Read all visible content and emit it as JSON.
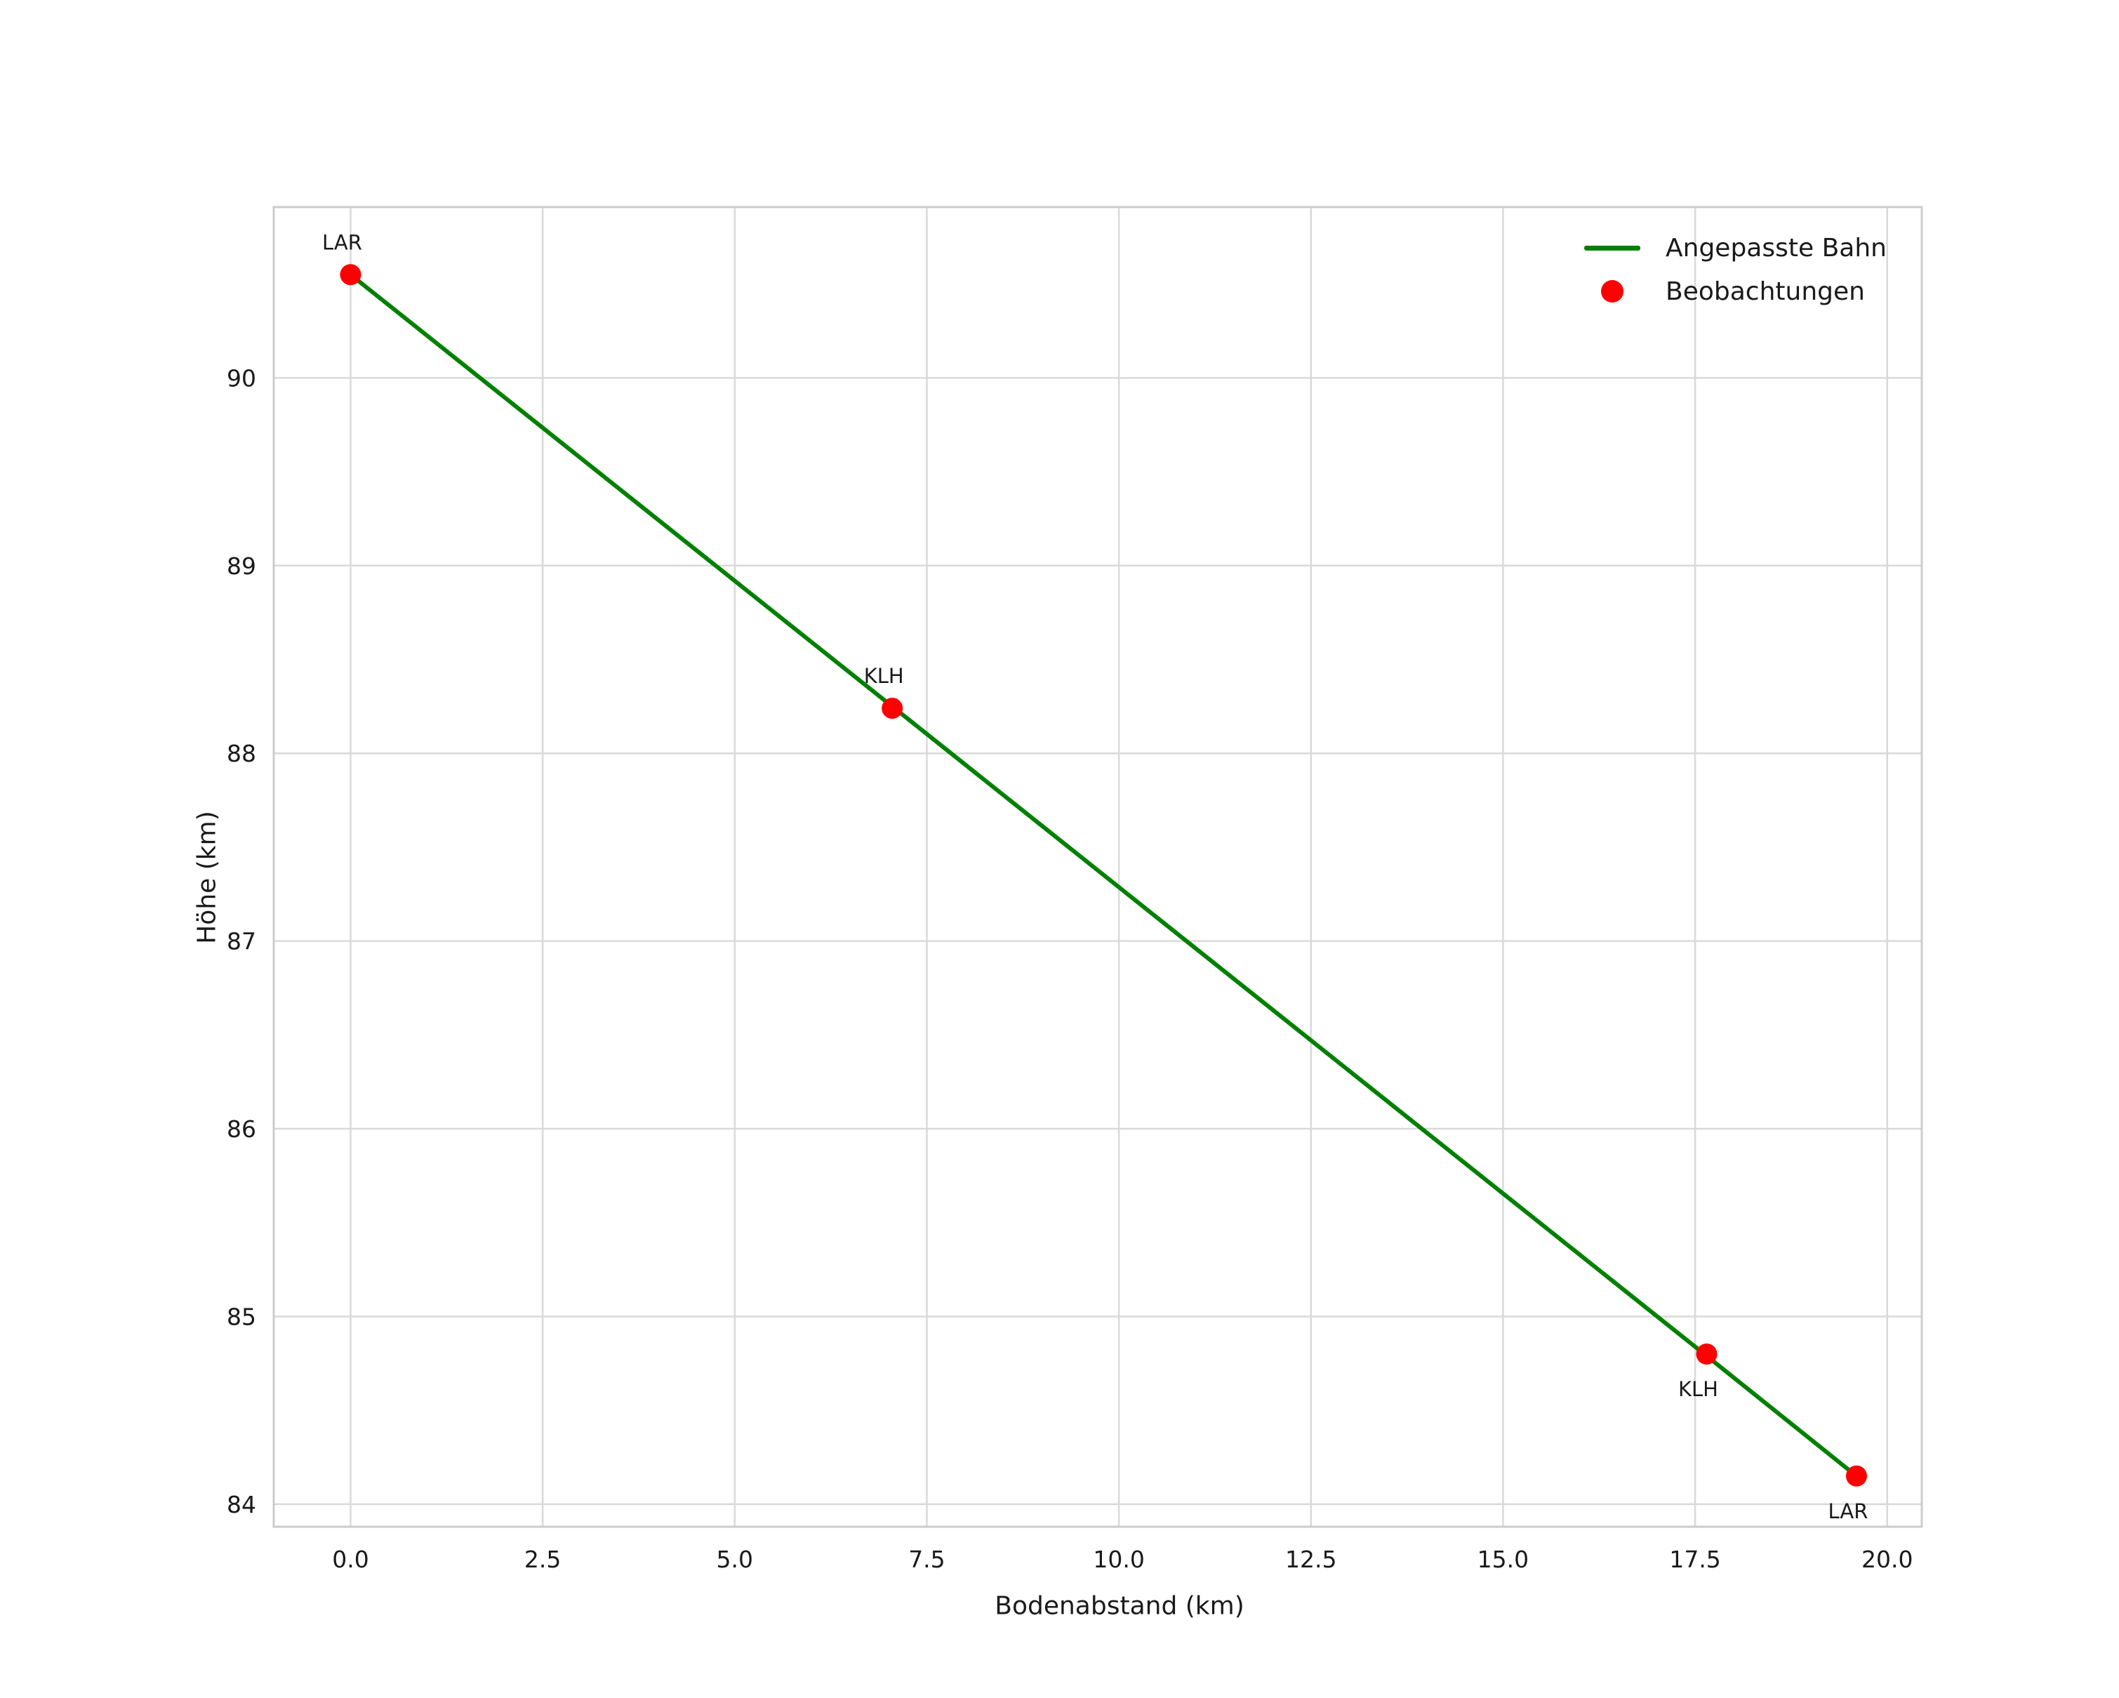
{
  "chart_data": {
    "type": "line+scatter",
    "title": "",
    "xlabel": "Bodenabstand (km)",
    "ylabel": "Höhe (km)",
    "xlim": [
      -1.0,
      20.45
    ],
    "ylim": [
      83.88,
      90.91
    ],
    "grid": true,
    "grid_color": "#d9d9d9",
    "border_color": "#cccccc",
    "background": "#ffffff",
    "x_tick_values": [
      0.0,
      2.5,
      5.0,
      7.5,
      10.0,
      12.5,
      15.0,
      17.5,
      20.0
    ],
    "x_tick_labels": [
      "0.0",
      "2.5",
      "5.0",
      "7.5",
      "10.0",
      "12.5",
      "15.0",
      "17.5",
      "20.0"
    ],
    "y_tick_values": [
      84,
      85,
      86,
      87,
      88,
      89,
      90
    ],
    "y_tick_labels": [
      "84",
      "85",
      "86",
      "87",
      "88",
      "89",
      "90"
    ],
    "line_series": {
      "name": "Angepasste Bahn",
      "color": "#008000",
      "x": [
        0.0,
        7.05,
        17.65,
        19.6
      ],
      "y": [
        90.55,
        88.25,
        84.79,
        84.15
      ]
    },
    "scatter_series": {
      "name": "Beobachtungen",
      "color": "#ff0000",
      "points": [
        {
          "x": 0.0,
          "y": 90.55,
          "label": "LAR",
          "label_pos": "above"
        },
        {
          "x": 7.05,
          "y": 88.24,
          "label": "KLH",
          "label_pos": "above"
        },
        {
          "x": 17.65,
          "y": 84.8,
          "label": "KLH",
          "label_pos": "below"
        },
        {
          "x": 19.6,
          "y": 84.15,
          "label": "LAR",
          "label_pos": "below"
        }
      ]
    },
    "legend": {
      "position": "upper right",
      "entries": [
        {
          "label": "Angepasste Bahn",
          "type": "line",
          "color": "#008000"
        },
        {
          "label": "Beobachtungen",
          "type": "dot",
          "color": "#ff0000"
        }
      ]
    }
  }
}
